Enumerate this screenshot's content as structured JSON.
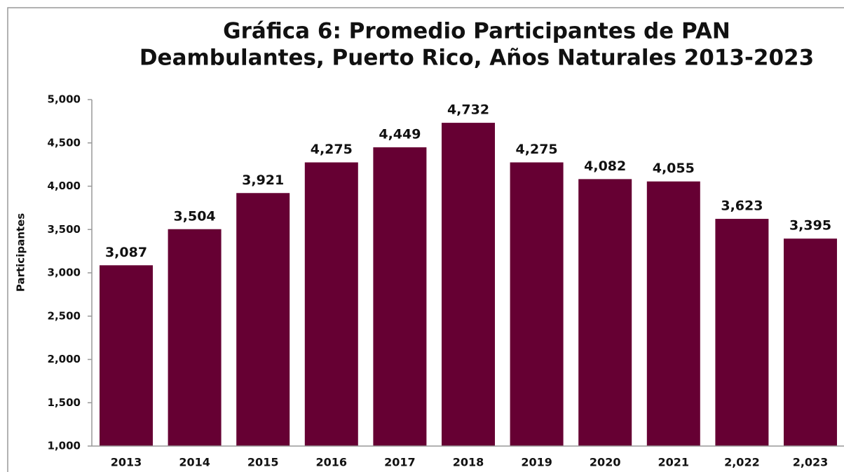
{
  "chart_data": {
    "type": "bar",
    "title": [
      "Gráfica 6: Promedio Participantes de PAN",
      "Deambulantes, Puerto Rico, Años Naturales 2013-2023"
    ],
    "y_label": "Participantes",
    "categories": [
      "2013",
      "2014",
      "2015",
      "2016",
      "2017",
      "2018",
      "2019",
      "2020",
      "2021",
      "2,022",
      "2,023"
    ],
    "values": [
      3087,
      3504,
      3921,
      4275,
      4449,
      4732,
      4275,
      4082,
      4055,
      3623,
      3395
    ],
    "value_labels": [
      "3,087",
      "3,504",
      "3,921",
      "4,275",
      "4,449",
      "4,732",
      "4,275",
      "4,082",
      "4,055",
      "3,623",
      "3,395"
    ],
    "color": "#660033",
    "ylim": [
      1000,
      5000
    ],
    "yticks": [
      {
        "value": 1000,
        "label": "1,000"
      },
      {
        "value": 1500,
        "label": "1,500"
      },
      {
        "value": 2000,
        "label": "2,000"
      },
      {
        "value": 2500,
        "label": "2,500"
      },
      {
        "value": 3000,
        "label": "3,000"
      },
      {
        "value": 3500,
        "label": "3,500"
      },
      {
        "value": 4000,
        "label": "4,000"
      },
      {
        "value": 4500,
        "label": "4,500"
      },
      {
        "value": 5000,
        "label": "5,000"
      }
    ]
  }
}
